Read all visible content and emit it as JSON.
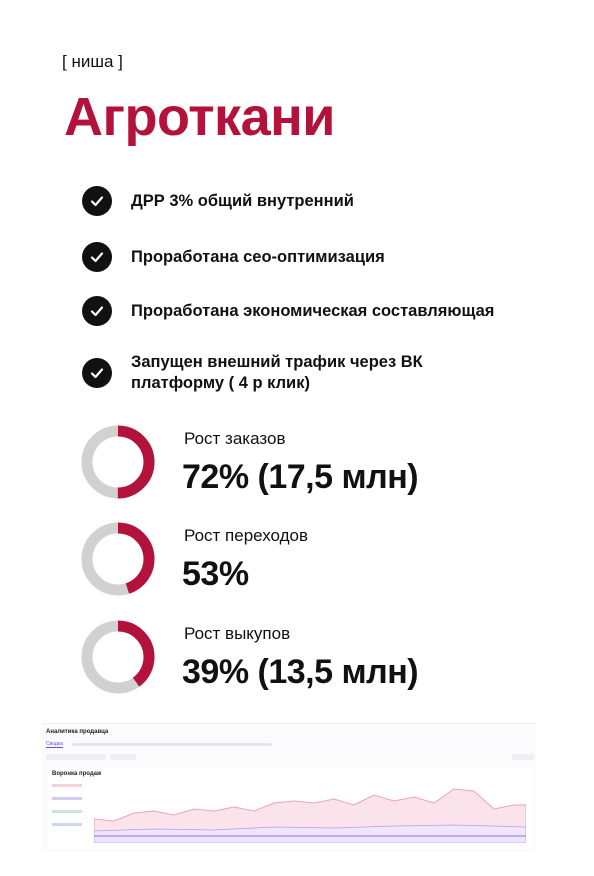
{
  "header": {
    "tag": "[ ниша ]",
    "title": "Агроткани"
  },
  "colors": {
    "accent": "#b3123a",
    "ring_bg": "#d1d1d1",
    "check_bg": "#111111"
  },
  "checklist": [
    {
      "icon": "check-icon",
      "text": "ДРР 3% общий внутренний"
    },
    {
      "icon": "check-icon",
      "text": "Проработана сео-оптимизация"
    },
    {
      "icon": "check-icon",
      "text": "Проработана экономическая составляющая"
    },
    {
      "icon": "check-icon",
      "text": "Запущен внешний трафик через ВК платформу ( 4 р клик)"
    }
  ],
  "stats": [
    {
      "label": "Рост заказов",
      "value": "72% (17,5 млн)",
      "ring_fraction": 0.5
    },
    {
      "label": "Рост переходов",
      "value": "53%",
      "ring_fraction": 0.45
    },
    {
      "label": "Рост выкупов",
      "value": "39% (13,5 млн)",
      "ring_fraction": 0.4
    }
  ],
  "screenshot": {
    "title": "Аналитика продавца",
    "tab_active": "Сводка",
    "panel_title": "Воронка продаж"
  }
}
